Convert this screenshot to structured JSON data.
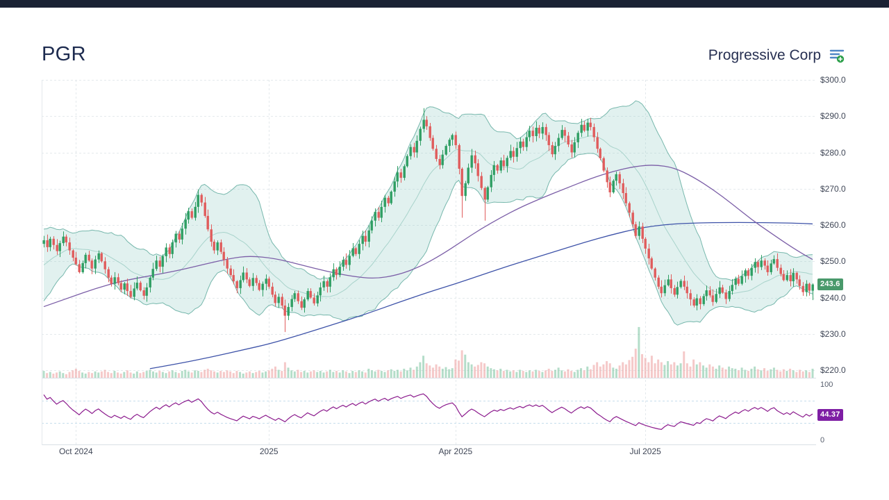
{
  "top_bar": {
    "color": "#1a2234"
  },
  "header": {
    "symbol": "PGR",
    "company": "Progressive Corp",
    "watchlist_icon": "document-add-icon"
  },
  "chart_data": {
    "type": "candlestick",
    "title": "PGR Progressive Corp daily candlestick chart with Bollinger Bands, two moving averages, volume and RSI",
    "y_axis": {
      "min": 220,
      "max": 300,
      "step": 10,
      "labels": [
        "$300.0",
        "$290.0",
        "$280.0",
        "$270.0",
        "$260.0",
        "$250.0",
        "$240.0",
        "$230.0",
        "$220.0"
      ]
    },
    "x_axis": {
      "labels": [
        {
          "text": "Oct 2024",
          "index": 10
        },
        {
          "text": "2025",
          "index": 70
        },
        {
          "text": "Apr 2025",
          "index": 128
        },
        {
          "text": "Jul 2025",
          "index": 187
        }
      ]
    },
    "last_price": 243.6,
    "last_price_label": "243.6",
    "price_badge_color": "#49996b",
    "rsi": {
      "period": 14,
      "last_value": 44.37,
      "last_label": "44.37",
      "badge_color": "#7e1ea4",
      "guides": [
        30,
        70
      ],
      "axis_labels": [
        "100",
        "0"
      ]
    },
    "bollinger": {
      "period": 20,
      "stddev": 2
    },
    "colors": {
      "up": "#2f9e63",
      "down": "#e05c5c",
      "band_fill": "rgba(146,205,196,0.28)",
      "band_line": "rgba(77,162,147,0.75)",
      "band_mid": "#a8d3cb",
      "vol_up": "rgba(118,193,156,0.55)",
      "vol_down": "rgba(238,165,165,0.6)",
      "rsi_line": "#8b1a8d",
      "grid": "#e4e9ec",
      "guide": "#c5dcec",
      "border": "#d9dfe5"
    },
    "warmup_closes": [
      239.0,
      240.5,
      242.0,
      241.0,
      243.0,
      244.5,
      246.0,
      245.0,
      247.0,
      248.5,
      250.0,
      249.0,
      251.0,
      252.5,
      251.5,
      253.0,
      254.5,
      253.5,
      255.0,
      256.0
    ],
    "candles": {
      "closes": [
        255.8,
        253.9,
        256.2,
        254.5,
        252.8,
        255.0,
        256.8,
        255.2,
        253.0,
        251.0,
        249.2,
        247.0,
        249.5,
        251.8,
        250.2,
        248.0,
        250.5,
        252.2,
        250.0,
        247.8,
        245.5,
        243.8,
        245.6,
        244.0,
        242.2,
        243.9,
        241.8,
        240.2,
        242.5,
        244.1,
        242.0,
        240.5,
        242.8,
        245.5,
        247.9,
        250.2,
        248.5,
        251.4,
        253.8,
        252.0,
        255.2,
        257.6,
        256.0,
        259.0,
        261.5,
        263.8,
        262.0,
        265.0,
        268.3,
        266.2,
        262.5,
        258.8,
        255.4,
        253.0,
        255.2,
        252.6,
        250.4,
        248.0,
        246.2,
        244.5,
        242.6,
        244.8,
        246.9,
        245.0,
        243.2,
        245.4,
        244.0,
        242.1,
        243.8,
        245.2,
        243.0,
        240.8,
        238.5,
        240.2,
        237.8,
        235.0,
        237.4,
        239.6,
        241.2,
        239.0,
        237.2,
        239.5,
        241.8,
        240.0,
        238.4,
        240.6,
        242.8,
        244.5,
        243.0,
        245.6,
        247.8,
        246.2,
        248.5,
        250.4,
        249.0,
        251.5,
        253.6,
        252.0,
        254.8,
        257.0,
        255.4,
        258.5,
        261.2,
        263.6,
        262.0,
        265.0,
        267.5,
        266.0,
        269.2,
        272.0,
        274.5,
        273.0,
        276.2,
        279.0,
        281.5,
        280.0,
        283.2,
        286.5,
        289.0,
        287.2,
        284.0,
        281.0,
        278.2,
        276.5,
        279.4,
        281.8,
        283.5,
        284.8,
        282.0,
        275.5,
        268.0,
        271.5,
        275.8,
        279.2,
        277.0,
        273.5,
        270.2,
        267.0,
        270.4,
        273.8,
        276.5,
        275.0,
        277.8,
        276.2,
        278.5,
        280.4,
        278.8,
        281.2,
        283.0,
        281.5,
        284.2,
        286.0,
        284.5,
        286.8,
        285.2,
        287.0,
        284.8,
        282.0,
        279.5,
        281.8,
        284.0,
        286.2,
        284.6,
        282.2,
        280.0,
        282.8,
        285.4,
        287.6,
        286.0,
        288.2,
        287.0,
        284.2,
        281.0,
        278.4,
        275.0,
        271.8,
        269.0,
        272.2,
        274.0,
        271.5,
        268.8,
        266.0,
        263.4,
        260.2,
        257.0,
        259.6,
        256.2,
        253.5,
        250.8,
        248.0,
        245.5,
        243.0,
        241.2,
        243.4,
        245.0,
        242.6,
        240.8,
        242.9,
        244.6,
        243.0,
        241.2,
        239.5,
        237.8,
        239.8,
        238.2,
        240.4,
        242.0,
        240.6,
        238.8,
        241.0,
        242.8,
        241.4,
        239.6,
        241.8,
        243.5,
        245.2,
        243.8,
        245.9,
        247.5,
        246.0,
        248.2,
        249.8,
        248.4,
        250.2,
        248.8,
        247.0,
        249.4,
        250.6,
        248.2,
        246.5,
        244.8,
        246.2,
        244.5,
        246.8,
        245.0,
        243.2,
        241.5,
        243.8,
        241.9,
        243.6
      ],
      "volumes": [
        14,
        10,
        12,
        9,
        11,
        13,
        10,
        8,
        12,
        15,
        18,
        14,
        11,
        9,
        12,
        10,
        13,
        11,
        13,
        16,
        12,
        10,
        14,
        11,
        9,
        12,
        15,
        11,
        9,
        13,
        10,
        12,
        14,
        16,
        13,
        11,
        14,
        12,
        10,
        13,
        15,
        12,
        10,
        14,
        16,
        13,
        11,
        15,
        14,
        12,
        16,
        18,
        15,
        13,
        11,
        14,
        12,
        15,
        13,
        10,
        14,
        12,
        9,
        11,
        13,
        10,
        12,
        14,
        11,
        13,
        15,
        18,
        22,
        16,
        14,
        30,
        20,
        15,
        13,
        16,
        12,
        14,
        11,
        13,
        15,
        12,
        14,
        11,
        13,
        16,
        12,
        14,
        11,
        15,
        13,
        10,
        14,
        12,
        15,
        13,
        11,
        18,
        15,
        13,
        16,
        14,
        12,
        15,
        17,
        14,
        16,
        13,
        18,
        15,
        20,
        16,
        22,
        30,
        42,
        28,
        24,
        20,
        26,
        22,
        18,
        21,
        17,
        19,
        35,
        33,
        52,
        44,
        30,
        26,
        22,
        25,
        30,
        28,
        22,
        19,
        17,
        15,
        18,
        14,
        16,
        13,
        15,
        12,
        16,
        14,
        12,
        15,
        13,
        16,
        14,
        12,
        15,
        18,
        14,
        16,
        20,
        15,
        13,
        17,
        14,
        12,
        16,
        19,
        15,
        22,
        17,
        25,
        30,
        22,
        26,
        32,
        28,
        20,
        18,
        24,
        30,
        26,
        34,
        40,
        55,
        95,
        45,
        38,
        30,
        42,
        28,
        35,
        30,
        25,
        32,
        26,
        30,
        24,
        28,
        50,
        28,
        22,
        35,
        26,
        30,
        24,
        20,
        26,
        22,
        18,
        24,
        20,
        17,
        22,
        19,
        18,
        15,
        20,
        16,
        14,
        18,
        22,
        17,
        15,
        19,
        14,
        17,
        20,
        16,
        13,
        17,
        14,
        18,
        15,
        12,
        16,
        13,
        15,
        12,
        18
      ],
      "wick_overrides": {
        "75": {
          "low": 230.5
        },
        "118": {
          "high": 292.2
        },
        "130": {
          "low": 262.0
        },
        "137": {
          "low": 261.2
        },
        "239": {
          "low": 239.3
        }
      }
    },
    "overlays": {
      "ma_purple": {
        "color": "#7b5ea7",
        "points": [
          [
            0,
            237.5
          ],
          [
            8,
            240.0
          ],
          [
            16,
            242.5
          ],
          [
            24,
            244.5
          ],
          [
            33,
            246.0
          ],
          [
            42,
            247.5
          ],
          [
            50,
            249.2
          ],
          [
            58,
            250.8
          ],
          [
            64,
            251.5
          ],
          [
            72,
            250.8
          ],
          [
            80,
            249.0
          ],
          [
            88,
            247.2
          ],
          [
            96,
            245.8
          ],
          [
            103,
            245.2
          ],
          [
            110,
            246.2
          ],
          [
            117,
            248.5
          ],
          [
            124,
            252.0
          ],
          [
            130,
            255.5
          ],
          [
            136,
            259.0
          ],
          [
            142,
            262.0
          ],
          [
            148,
            264.8
          ],
          [
            155,
            267.5
          ],
          [
            162,
            270.0
          ],
          [
            170,
            272.8
          ],
          [
            177,
            274.8
          ],
          [
            184,
            276.2
          ],
          [
            190,
            276.6
          ],
          [
            196,
            275.8
          ],
          [
            202,
            273.2
          ],
          [
            208,
            269.8
          ],
          [
            214,
            265.8
          ],
          [
            220,
            261.5
          ],
          [
            226,
            257.8
          ],
          [
            232,
            254.2
          ],
          [
            236,
            252.0
          ],
          [
            239,
            250.5
          ]
        ]
      },
      "ma_blue": {
        "color": "#3d52a8",
        "points": [
          [
            33,
            220.4
          ],
          [
            42,
            221.8
          ],
          [
            52,
            223.6
          ],
          [
            62,
            225.6
          ],
          [
            70,
            227.2
          ],
          [
            80,
            229.8
          ],
          [
            90,
            232.6
          ],
          [
            100,
            235.4
          ],
          [
            110,
            238.6
          ],
          [
            120,
            241.6
          ],
          [
            128,
            243.8
          ],
          [
            136,
            246.2
          ],
          [
            144,
            248.6
          ],
          [
            152,
            250.8
          ],
          [
            160,
            253.0
          ],
          [
            168,
            255.2
          ],
          [
            176,
            257.2
          ],
          [
            184,
            258.9
          ],
          [
            190,
            259.8
          ],
          [
            196,
            260.3
          ],
          [
            204,
            260.6
          ],
          [
            212,
            260.7
          ],
          [
            220,
            260.7
          ],
          [
            228,
            260.6
          ],
          [
            234,
            260.5
          ],
          [
            239,
            260.3
          ]
        ]
      }
    }
  }
}
